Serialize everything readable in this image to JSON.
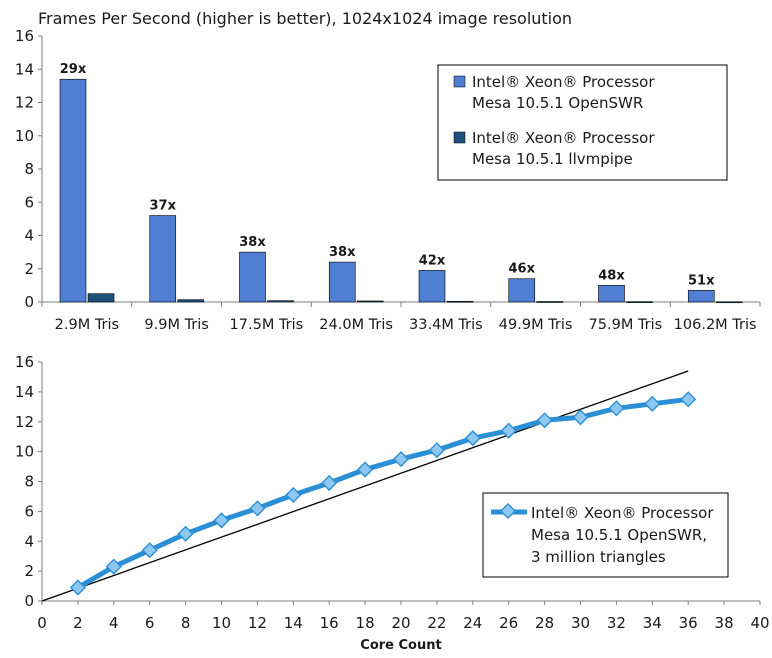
{
  "chart_data": [
    {
      "type": "bar",
      "title": "Frames Per Second (higher is better), 1024x1024 image resolution",
      "categories": [
        "2.9M Tris",
        "9.9M Tris",
        "17.5M Tris",
        "24.0M Tris",
        "33.4M Tris",
        "49.9M Tris",
        "75.9M Tris",
        "106.2M Tris"
      ],
      "series": [
        {
          "name_line1": "Intel® Xeon® Processor",
          "name_line2": "Mesa 10.5.1 OpenSWR",
          "color": "#4f7fd2",
          "values": [
            13.4,
            5.2,
            3.0,
            2.4,
            1.9,
            1.4,
            1.0,
            0.7
          ]
        },
        {
          "name_line1": "Intel® Xeon® Processor",
          "name_line2": "Mesa 10.5.1 llvmpipe",
          "color": "#1f4f7d",
          "values": [
            0.5,
            0.14,
            0.08,
            0.063,
            0.045,
            0.03,
            0.021,
            0.014
          ]
        }
      ],
      "bar_labels": [
        "29x",
        "37x",
        "38x",
        "38x",
        "42x",
        "46x",
        "48x",
        "51x"
      ],
      "y_ticks": [
        "0",
        "2",
        "4",
        "6",
        "8",
        "10",
        "12",
        "14",
        "16"
      ],
      "ylim": [
        0,
        16
      ],
      "legend_position": "top-right",
      "grid": false
    },
    {
      "type": "line",
      "title": "",
      "xlabel": "Core Count",
      "ylabel": "",
      "x_ticks": [
        "0",
        "2",
        "4",
        "6",
        "8",
        "10",
        "12",
        "14",
        "16",
        "18",
        "20",
        "22",
        "24",
        "26",
        "28",
        "30",
        "32",
        "34",
        "36",
        "38",
        "40"
      ],
      "y_ticks": [
        "0",
        "2",
        "4",
        "6",
        "8",
        "10",
        "12",
        "14",
        "16"
      ],
      "xlim": [
        0,
        40
      ],
      "ylim": [
        0,
        16
      ],
      "series": [
        {
          "name_line1": "Intel® Xeon® Processor",
          "name_line2": "Mesa 10.5.1 OpenSWR,",
          "name_line3": "3 million triangles",
          "color": "#2b8fd6",
          "marker_color": "#8ec8f2",
          "x": [
            2,
            4,
            6,
            8,
            10,
            12,
            14,
            16,
            18,
            20,
            22,
            24,
            26,
            28,
            30,
            32,
            34,
            36
          ],
          "y": [
            0.9,
            2.3,
            3.4,
            4.5,
            5.4,
            6.2,
            7.1,
            7.9,
            8.8,
            9.5,
            10.1,
            10.9,
            11.4,
            12.1,
            12.3,
            12.9,
            13.2,
            13.5
          ]
        }
      ],
      "reference_line": {
        "color": "#000000",
        "x": [
          0,
          36
        ],
        "y": [
          0,
          15.4
        ]
      },
      "legend_position": "bottom-right",
      "grid": false
    }
  ]
}
